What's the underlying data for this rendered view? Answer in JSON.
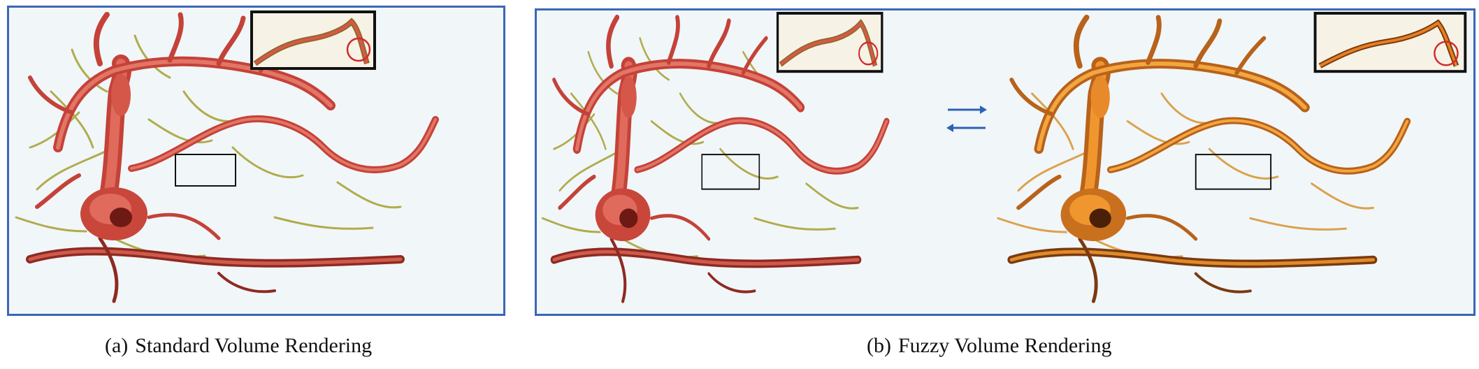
{
  "captions": {
    "a": {
      "label": "(a)",
      "text": "Standard Volume Rendering"
    },
    "b": {
      "label": "(b)",
      "text": "Fuzzy Volume Rendering"
    }
  },
  "colors": {
    "panel_border": "#3a67b6",
    "panel_background": "#f1f6f9",
    "vessel_standard": "#d9574a",
    "vessel_fuzzy": "#e67f22",
    "fine_vessel": "#a9a43a",
    "highlight_circle": "#d22a2a",
    "arrow": "#2c63b8",
    "inset_border": "#111111"
  },
  "icons": [
    "right-arrow-icon",
    "left-arrow-icon",
    "highlight-circle-icon"
  ]
}
